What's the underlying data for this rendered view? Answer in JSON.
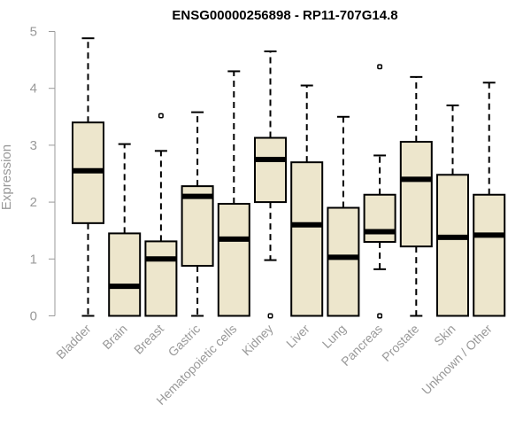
{
  "chart_data": {
    "type": "boxplot",
    "title": "ENSG00000256898 - RP11-707G14.8",
    "ylabel": "Expression",
    "xlabel": "",
    "ylim": [
      0,
      5
    ],
    "yticks": [
      0,
      1,
      2,
      3,
      4,
      5
    ],
    "grid": false,
    "legend": "none",
    "colors": {
      "box_fill": "#ede6cc",
      "stroke": "#000000",
      "axis": "#999999"
    },
    "categories": [
      "Bladder",
      "Brain",
      "Breast",
      "Gastric",
      "Hematopoietic cells",
      "Kidney",
      "Liver",
      "Lung",
      "Pancreas",
      "Prostate",
      "Skin",
      "Unknown / Other"
    ],
    "boxes": [
      {
        "min": 0,
        "q1": 1.63,
        "median": 2.55,
        "q3": 3.4,
        "max": 4.88,
        "outliers": []
      },
      {
        "min": 0,
        "q1": 0,
        "median": 0.52,
        "q3": 1.45,
        "max": 3.02,
        "outliers": []
      },
      {
        "min": 0,
        "q1": 0,
        "median": 1.0,
        "q3": 1.31,
        "max": 2.9,
        "outliers": [
          3.52
        ]
      },
      {
        "min": 0,
        "q1": 0.88,
        "median": 2.1,
        "q3": 2.28,
        "max": 3.58,
        "outliers": []
      },
      {
        "min": 0,
        "q1": 0,
        "median": 1.35,
        "q3": 1.97,
        "max": 4.3,
        "outliers": []
      },
      {
        "min": 0.98,
        "q1": 2.0,
        "median": 2.75,
        "q3": 3.13,
        "max": 4.65,
        "outliers": [
          0
        ]
      },
      {
        "min": 0,
        "q1": 0,
        "median": 1.6,
        "q3": 2.7,
        "max": 4.05,
        "outliers": []
      },
      {
        "min": 0,
        "q1": 0,
        "median": 1.03,
        "q3": 1.9,
        "max": 3.5,
        "outliers": []
      },
      {
        "min": 0.82,
        "q1": 1.3,
        "median": 1.48,
        "q3": 2.13,
        "max": 2.82,
        "outliers": [
          4.38,
          0
        ]
      },
      {
        "min": 0,
        "q1": 1.22,
        "median": 2.4,
        "q3": 3.06,
        "max": 4.2,
        "outliers": []
      },
      {
        "min": 0,
        "q1": 0,
        "median": 1.38,
        "q3": 2.48,
        "max": 3.7,
        "outliers": []
      },
      {
        "min": 0,
        "q1": 0,
        "median": 1.42,
        "q3": 2.13,
        "max": 4.1,
        "outliers": []
      }
    ]
  }
}
